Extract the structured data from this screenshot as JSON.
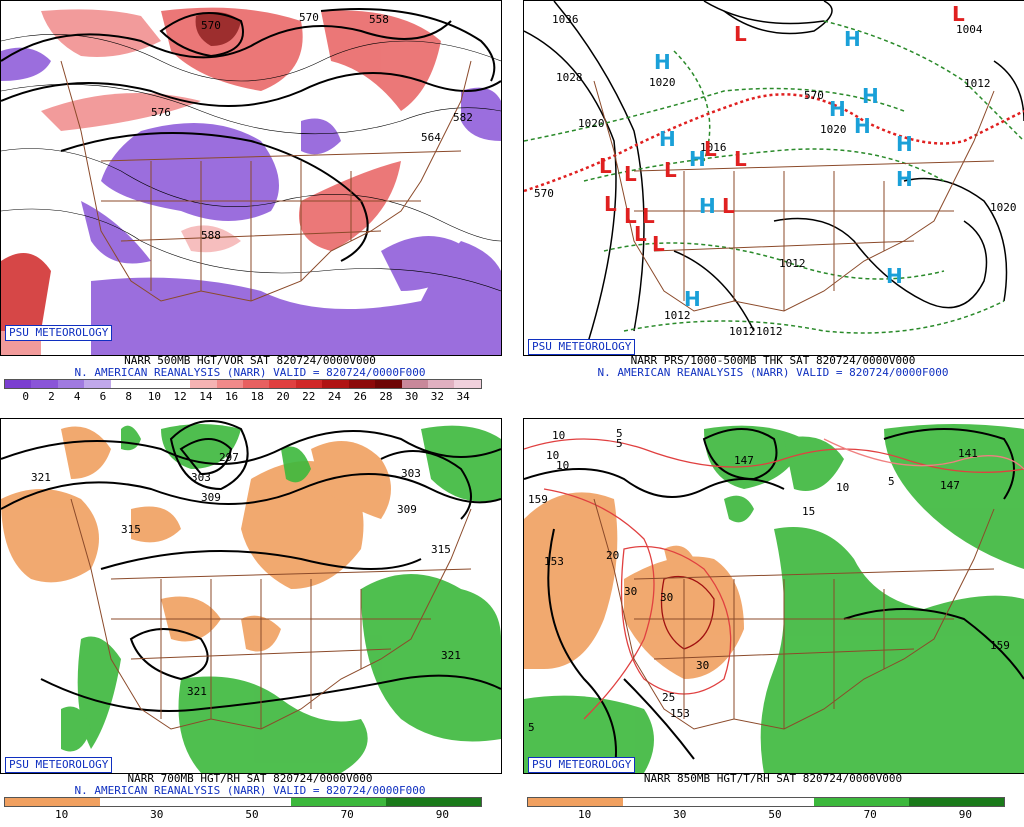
{
  "badge_text": "PSU METEOROLOGY",
  "subtitle": "N. AMERICAN REANALYSIS (NARR) VALID = 820724/0000F000",
  "panels": [
    {
      "title": "NARR 500MB HGT/VOR SAT 820724/0000V000",
      "colorbar": {
        "ticks": [
          "0",
          "2",
          "4",
          "6",
          "8",
          "10",
          "12",
          "14",
          "16",
          "18",
          "20",
          "22",
          "24",
          "26",
          "28",
          "30",
          "32",
          "34"
        ],
        "colors": [
          "#7b3fd0",
          "#8a55d8",
          "#a07ae0",
          "#c0a8ea",
          "#ffffff",
          "#ffffff",
          "#ffffff",
          "#f5b3b3",
          "#f08a8a",
          "#e86060",
          "#e04040",
          "#d02828",
          "#b01414",
          "#8c0a0a",
          "#6e0505",
          "#c8889a",
          "#e0b0c0",
          "#f0d0dc"
        ]
      },
      "contour_labels": [
        "570",
        "558",
        "582",
        "588",
        "576",
        "564",
        "570"
      ]
    },
    {
      "title": "NARR PRS/1000-500MB THK SAT 820724/0000V000",
      "contour_labels": [
        "1036",
        "1028",
        "1020",
        "1020",
        "1012",
        "1012",
        "1012",
        "1012",
        "1020",
        "1004",
        "1012",
        "1016",
        "1020",
        "570",
        "570"
      ],
      "pressure_centers": [
        "H",
        "H",
        "H",
        "H",
        "H",
        "H",
        "H",
        "H",
        "H",
        "H",
        "H",
        "H",
        "L",
        "L",
        "L",
        "L",
        "L",
        "L",
        "L",
        "L",
        "L",
        "L",
        "L",
        "L",
        "L"
      ]
    },
    {
      "title": "NARR 700MB HGT/RH SAT 820724/0000V000",
      "colorbar": {
        "ticks": [
          "10",
          "30",
          "50",
          "70",
          "90"
        ],
        "colors": [
          "#f0a060",
          "#ffffff",
          "#ffffff",
          "#3cb83c",
          "#1a7a1a"
        ]
      },
      "contour_labels": [
        "321",
        "297",
        "303",
        "309",
        "315",
        "303",
        "309",
        "315",
        "321",
        "321"
      ]
    },
    {
      "title": "NARR 850MB HGT/T/RH SAT 820724/0000V000",
      "colorbar": {
        "ticks": [
          "10",
          "30",
          "50",
          "70",
          "90"
        ],
        "colors": [
          "#f0a060",
          "#ffffff",
          "#ffffff",
          "#3cb83c",
          "#1a7a1a"
        ]
      },
      "contour_labels": [
        "147",
        "141",
        "147",
        "159",
        "153",
        "153",
        "159"
      ],
      "temp_labels": [
        "10",
        "10",
        "5",
        "10",
        "5",
        "15",
        "20",
        "30",
        "30",
        "30",
        "25",
        "10",
        "5",
        "5"
      ]
    }
  ]
}
